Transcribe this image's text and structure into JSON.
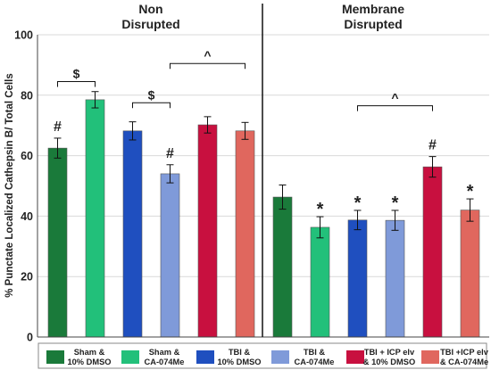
{
  "chart_data": {
    "type": "bar",
    "ylabel": "% Punctate Localized Cathepsin B/ Total Cells",
    "ylim": [
      0,
      100
    ],
    "yticks": [
      0,
      20,
      40,
      60,
      80,
      100
    ],
    "groups": [
      {
        "title_lines": [
          "Non",
          "Disrupted"
        ],
        "bars": [
          {
            "series_index": 0,
            "value": 62.5,
            "error": 3.3
          },
          {
            "series_index": 1,
            "value": 78.5,
            "error": 2.7
          },
          {
            "series_index": 2,
            "value": 68.2,
            "error": 3.0
          },
          {
            "series_index": 3,
            "value": 54.0,
            "error": 3.0
          },
          {
            "series_index": 4,
            "value": 70.2,
            "error": 2.7
          },
          {
            "series_index": 5,
            "value": 68.2,
            "error": 2.8
          }
        ]
      },
      {
        "title_lines": [
          "Membrane",
          "Disrupted"
        ],
        "bars": [
          {
            "series_index": 0,
            "value": 46.3,
            "error": 4.0
          },
          {
            "series_index": 1,
            "value": 36.3,
            "error": 3.5
          },
          {
            "series_index": 2,
            "value": 38.7,
            "error": 3.2
          },
          {
            "series_index": 3,
            "value": 38.6,
            "error": 3.3
          },
          {
            "series_index": 4,
            "value": 56.3,
            "error": 3.4
          },
          {
            "series_index": 5,
            "value": 42.0,
            "error": 3.7
          }
        ]
      }
    ],
    "series": [
      {
        "name_lines": [
          "Sham &",
          "10% DMSO"
        ],
        "color": "#1a7a3a"
      },
      {
        "name_lines": [
          "Sham &",
          "CA-074Me"
        ],
        "color": "#22c07a"
      },
      {
        "name_lines": [
          "TBI &",
          "10% DMSO"
        ],
        "color": "#1f4fbf"
      },
      {
        "name_lines": [
          "TBI &",
          "CA-074Me"
        ],
        "color": "#7f9ad9"
      },
      {
        "name_lines": [
          "TBI + ICP elv",
          "& 10% DMSO"
        ],
        "color": "#c8103f"
      },
      {
        "name_lines": [
          "TBI +ICP elv",
          "& CA-074Me"
        ],
        "color": "#e0675e"
      }
    ],
    "bar_annotations": [
      {
        "group": 0,
        "bar": 0,
        "text": "#"
      },
      {
        "group": 0,
        "bar": 3,
        "text": "#"
      },
      {
        "group": 1,
        "bar": 1,
        "text": "*"
      },
      {
        "group": 1,
        "bar": 2,
        "text": "*"
      },
      {
        "group": 1,
        "bar": 3,
        "text": "*"
      },
      {
        "group": 1,
        "bar": 4,
        "text": "#"
      },
      {
        "group": 1,
        "bar": 5,
        "text": "*"
      }
    ],
    "brackets": [
      {
        "group": 0,
        "from": 0,
        "to": 1,
        "level": 84.5,
        "text": "$"
      },
      {
        "group": 0,
        "from": 2,
        "to": 3,
        "level": 77.5,
        "text": "$"
      },
      {
        "group": 0,
        "from": 3,
        "to": 5,
        "level": 90.5,
        "text": "^"
      },
      {
        "group": 1,
        "from": 2,
        "to": 4,
        "level": 76.5,
        "text": "^"
      }
    ]
  }
}
